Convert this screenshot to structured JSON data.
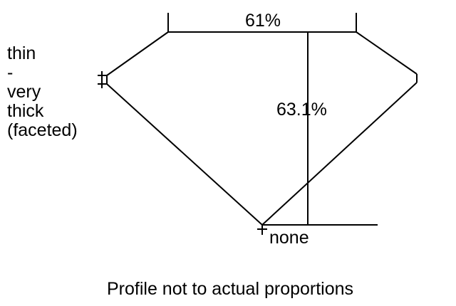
{
  "girdle_label": [
    "thin",
    "-",
    "very",
    "thick",
    "(faceted)"
  ],
  "table_label": "61%",
  "depth_label": "63.1%",
  "culet_label": "none",
  "caption": "Profile not to actual proportions",
  "line_color": "#000000"
}
